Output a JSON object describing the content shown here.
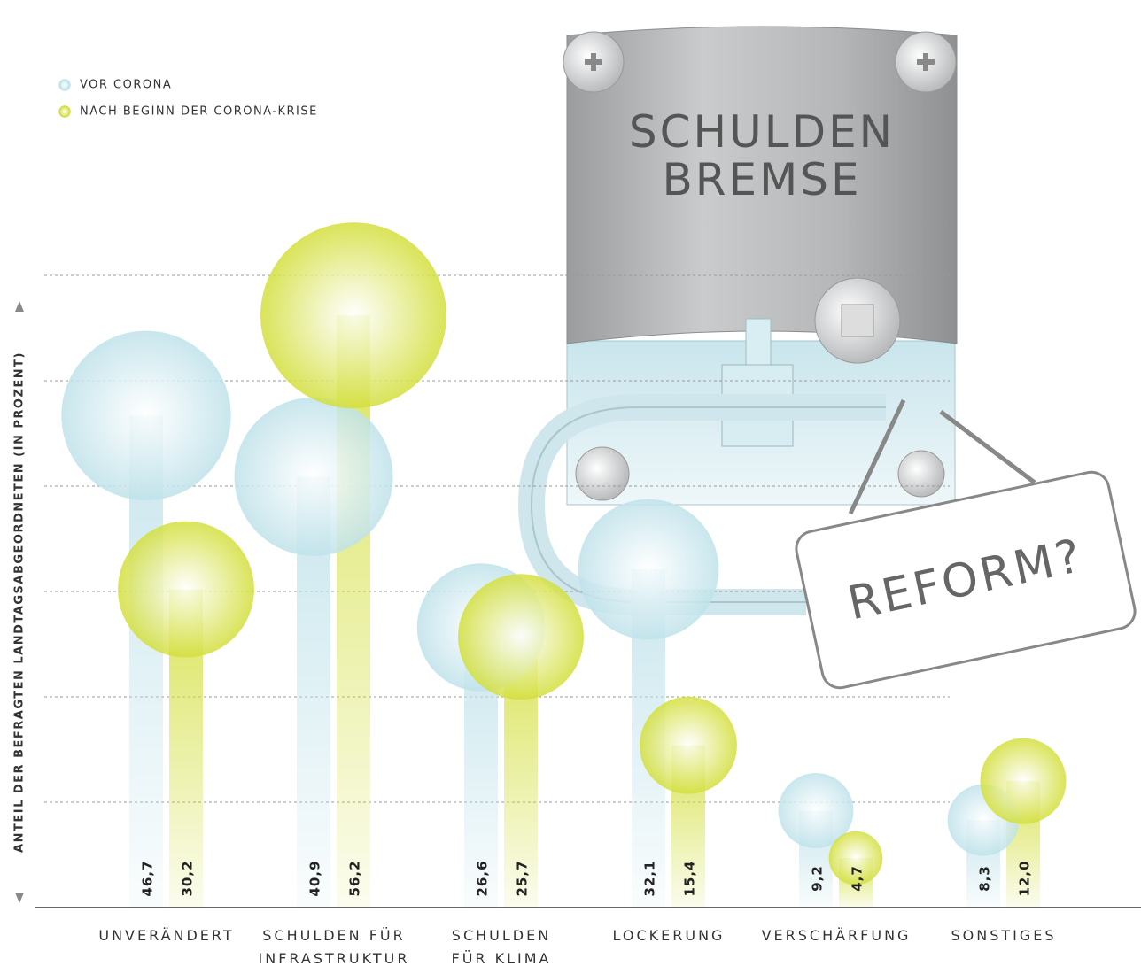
{
  "chart_data": {
    "type": "bubble-lollipop",
    "y_label": "ANTEIL DER BEFRAGTEN LANDTAGSABGEORDNETEN (IN PROZENT)",
    "categories": [
      "UNVERÄNDERT",
      "SCHULDEN FÜR\nINFRASTRUKTUR",
      "SCHULDEN\nFÜR KLIMA",
      "LOCKERUNG",
      "VERSCHÄRFUNG",
      "SONSTIGES"
    ],
    "series": [
      {
        "name": "VOR CORONA",
        "color": "#bfe2ea",
        "values": [
          46.7,
          40.9,
          26.6,
          32.1,
          9.2,
          8.3
        ],
        "value_labels": [
          "46,7",
          "40,9",
          "26,6",
          "32,1",
          "9,2",
          "8,3"
        ]
      },
      {
        "name": "NACH BEGINN DER CORONA-KRISE",
        "color": "#d3df3c",
        "values": [
          30.2,
          56.2,
          25.7,
          15.4,
          4.7,
          12.0
        ],
        "value_labels": [
          "30,2",
          "56,2",
          "25,7",
          "15,4",
          "4,7",
          "12,0"
        ]
      }
    ],
    "ylim": [
      0,
      60
    ],
    "yticks": [
      10,
      20,
      30,
      40,
      50,
      60
    ],
    "grid": true,
    "annotations": [
      "SCHULDEN",
      "BREMSE",
      "REFORM?"
    ]
  }
}
